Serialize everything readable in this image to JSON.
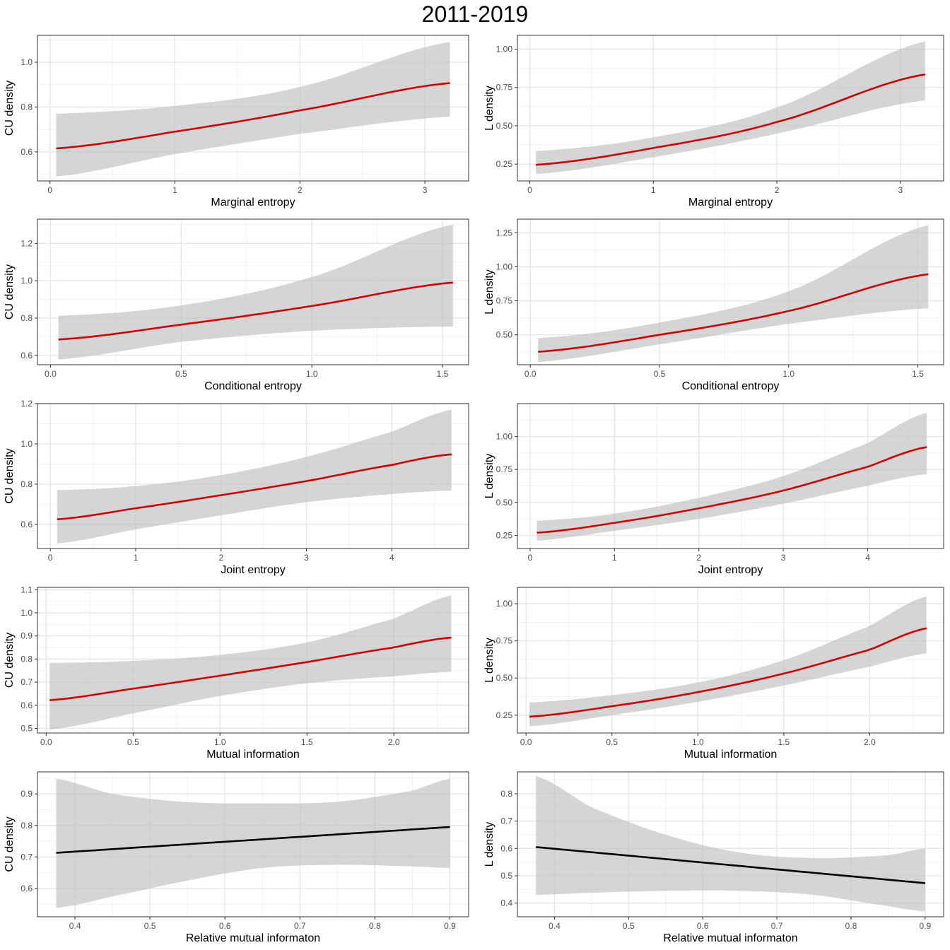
{
  "title": "2011-2019",
  "colors": {
    "significant_line": "#CC0000",
    "nonsignificant_line": "#000000",
    "ribbon": "#BEBEBE"
  },
  "chart_data": [
    {
      "type": "line",
      "xlabel": "Marginal entropy",
      "ylabel": "CU density",
      "xlim": [
        -0.1,
        3.35
      ],
      "ylim": [
        0.47,
        1.12
      ],
      "xticks": [
        0,
        1,
        2,
        3
      ],
      "yticks": [
        0.6,
        0.8,
        1.0
      ],
      "ytick_labels": [
        "0.6",
        "0.8",
        "1.0"
      ],
      "series": [
        {
          "name": "fit",
          "x": [
            0.05,
            1.0,
            2.0,
            3.2
          ],
          "y": [
            0.615,
            0.69,
            0.785,
            0.907
          ]
        }
      ],
      "band": {
        "x": [
          0.05,
          1.0,
          2.0,
          3.2
        ],
        "lower": [
          0.49,
          0.59,
          0.68,
          0.757
        ],
        "upper": [
          0.77,
          0.805,
          0.89,
          1.09
        ]
      },
      "color": "#CC0000"
    },
    {
      "type": "line",
      "xlabel": "Marginal entropy",
      "ylabel": "L density",
      "xlim": [
        -0.1,
        3.35
      ],
      "ylim": [
        0.14,
        1.09
      ],
      "xticks": [
        0,
        1,
        2,
        3
      ],
      "yticks": [
        0.25,
        0.5,
        0.75,
        1.0
      ],
      "ytick_labels": [
        "0.25",
        "0.50",
        "0.75",
        "1.00"
      ],
      "series": [
        {
          "name": "fit",
          "x": [
            0.05,
            1.0,
            2.0,
            3.2
          ],
          "y": [
            0.245,
            0.355,
            0.525,
            0.835
          ]
        }
      ],
      "band": {
        "x": [
          0.05,
          1.0,
          2.0,
          3.2
        ],
        "lower": [
          0.185,
          0.295,
          0.45,
          0.665
        ],
        "upper": [
          0.335,
          0.425,
          0.62,
          1.05
        ]
      },
      "color": "#CC0000"
    },
    {
      "type": "line",
      "xlabel": "Conditional entropy",
      "ylabel": "CU density",
      "xlim": [
        -0.05,
        1.6
      ],
      "ylim": [
        0.55,
        1.33
      ],
      "xticks": [
        0,
        0.5,
        1.0,
        1.5
      ],
      "xtick_labels": [
        "0.0",
        "0.5",
        "1.0",
        "1.5"
      ],
      "yticks": [
        0.6,
        0.8,
        1.0,
        1.2
      ],
      "ytick_labels": [
        "0.6",
        "0.8",
        "1.0",
        "1.2"
      ],
      "series": [
        {
          "name": "fit",
          "x": [
            0.03,
            0.5,
            1.0,
            1.54
          ],
          "y": [
            0.685,
            0.765,
            0.865,
            0.99
          ]
        }
      ],
      "band": {
        "x": [
          0.03,
          0.5,
          1.0,
          1.54
        ],
        "lower": [
          0.578,
          0.672,
          0.732,
          0.755
        ],
        "upper": [
          0.812,
          0.868,
          1.02,
          1.3
        ]
      },
      "color": "#CC0000"
    },
    {
      "type": "line",
      "xlabel": "Conditional entropy",
      "ylabel": "L density",
      "xlim": [
        -0.05,
        1.6
      ],
      "ylim": [
        0.28,
        1.35
      ],
      "xticks": [
        0,
        0.5,
        1.0,
        1.5
      ],
      "xtick_labels": [
        "0.0",
        "0.5",
        "1.0",
        "1.5"
      ],
      "yticks": [
        0.5,
        0.75,
        1.0,
        1.25
      ],
      "ytick_labels": [
        "0.50",
        "0.75",
        "1.00",
        "1.25"
      ],
      "series": [
        {
          "name": "fit",
          "x": [
            0.03,
            0.5,
            1.0,
            1.54
          ],
          "y": [
            0.375,
            0.5,
            0.675,
            0.945
          ]
        }
      ],
      "band": {
        "x": [
          0.03,
          0.5,
          1.0,
          1.54
        ],
        "lower": [
          0.3,
          0.43,
          0.58,
          0.695
        ],
        "upper": [
          0.475,
          0.59,
          0.82,
          1.305
        ]
      },
      "color": "#CC0000"
    },
    {
      "type": "line",
      "xlabel": "Joint entropy",
      "ylabel": "CU density",
      "xlim": [
        -0.15,
        4.9
      ],
      "ylim": [
        0.48,
        1.2
      ],
      "xticks": [
        0,
        1,
        2,
        3,
        4
      ],
      "yticks": [
        0.6,
        0.8,
        1.0,
        1.2
      ],
      "ytick_labels": [
        "0.6",
        "0.8",
        "1.0",
        "1.2"
      ],
      "series": [
        {
          "name": "fit",
          "x": [
            0.08,
            1.0,
            2.0,
            3.0,
            4.0,
            4.7
          ],
          "y": [
            0.625,
            0.68,
            0.745,
            0.815,
            0.895,
            0.948
          ]
        }
      ],
      "band": {
        "x": [
          0.08,
          1.0,
          2.0,
          3.0,
          4.0,
          4.7
        ],
        "lower": [
          0.505,
          0.575,
          0.645,
          0.71,
          0.75,
          0.768
        ],
        "upper": [
          0.77,
          0.79,
          0.845,
          0.935,
          1.06,
          1.17
        ]
      },
      "color": "#CC0000"
    },
    {
      "type": "line",
      "xlabel": "Joint entropy",
      "ylabel": "L density",
      "xlim": [
        -0.15,
        4.9
      ],
      "ylim": [
        0.15,
        1.25
      ],
      "xticks": [
        0,
        1,
        2,
        3,
        4
      ],
      "yticks": [
        0.25,
        0.5,
        0.75,
        1.0
      ],
      "ytick_labels": [
        "0.25",
        "0.50",
        "0.75",
        "1.00"
      ],
      "series": [
        {
          "name": "fit",
          "x": [
            0.08,
            1.0,
            2.0,
            3.0,
            4.0,
            4.7
          ],
          "y": [
            0.27,
            0.345,
            0.455,
            0.59,
            0.77,
            0.92
          ]
        }
      ],
      "band": {
        "x": [
          0.08,
          1.0,
          2.0,
          3.0,
          4.0,
          4.7
        ],
        "lower": [
          0.21,
          0.285,
          0.375,
          0.49,
          0.625,
          0.715
        ],
        "upper": [
          0.36,
          0.415,
          0.535,
          0.7,
          0.95,
          1.18
        ]
      },
      "color": "#CC0000"
    },
    {
      "type": "line",
      "xlabel": "Mutual information",
      "ylabel": "CU density",
      "xlim": [
        -0.05,
        2.43
      ],
      "ylim": [
        0.48,
        1.11
      ],
      "xticks": [
        0,
        0.5,
        1.0,
        1.5,
        2.0
      ],
      "xtick_labels": [
        "0.0",
        "0.5",
        "1.0",
        "1.5",
        "2.0"
      ],
      "yticks": [
        0.5,
        0.6,
        0.7,
        0.8,
        0.9,
        1.0,
        1.1
      ],
      "ytick_labels": [
        "0.5",
        "0.6",
        "0.7",
        "0.8",
        "0.9",
        "1.0",
        "1.1"
      ],
      "series": [
        {
          "name": "fit",
          "x": [
            0.02,
            0.5,
            1.0,
            1.5,
            2.0,
            2.33
          ],
          "y": [
            0.622,
            0.672,
            0.728,
            0.787,
            0.85,
            0.893
          ]
        }
      ],
      "band": {
        "x": [
          0.02,
          0.5,
          1.0,
          1.5,
          2.0,
          2.33
        ],
        "lower": [
          0.495,
          0.565,
          0.64,
          0.695,
          0.725,
          0.745
        ],
        "upper": [
          0.783,
          0.792,
          0.818,
          0.872,
          0.975,
          1.075
        ]
      },
      "color": "#CC0000"
    },
    {
      "type": "line",
      "xlabel": "Mutual information",
      "ylabel": "L density",
      "xlim": [
        -0.05,
        2.43
      ],
      "ylim": [
        0.13,
        1.11
      ],
      "xticks": [
        0,
        0.5,
        1.0,
        1.5,
        2.0
      ],
      "xtick_labels": [
        "0.0",
        "0.5",
        "1.0",
        "1.5",
        "2.0"
      ],
      "yticks": [
        0.25,
        0.5,
        0.75,
        1.0
      ],
      "ytick_labels": [
        "0.25",
        "0.50",
        "0.75",
        "1.00"
      ],
      "series": [
        {
          "name": "fit",
          "x": [
            0.02,
            0.5,
            1.0,
            1.5,
            2.0,
            2.33
          ],
          "y": [
            0.24,
            0.31,
            0.405,
            0.53,
            0.69,
            0.835
          ]
        }
      ],
      "band": {
        "x": [
          0.02,
          0.5,
          1.0,
          1.5,
          2.0,
          2.33
        ],
        "lower": [
          0.175,
          0.25,
          0.34,
          0.45,
          0.575,
          0.665
        ],
        "upper": [
          0.335,
          0.385,
          0.47,
          0.62,
          0.85,
          1.05
        ]
      },
      "color": "#CC0000"
    },
    {
      "type": "line",
      "xlabel": "Relative mutual informaton",
      "ylabel": "CU density",
      "xlim": [
        0.35,
        0.925
      ],
      "ylim": [
        0.51,
        0.97
      ],
      "xticks": [
        0.4,
        0.5,
        0.6,
        0.7,
        0.8,
        0.9
      ],
      "xtick_labels": [
        "0.4",
        "0.5",
        "0.6",
        "0.7",
        "0.8",
        "0.9"
      ],
      "yticks": [
        0.6,
        0.7,
        0.8,
        0.9
      ],
      "ytick_labels": [
        "0.6",
        "0.7",
        "0.8",
        "0.9"
      ],
      "series": [
        {
          "name": "fit",
          "x": [
            0.375,
            0.9
          ],
          "y": [
            0.713,
            0.795
          ]
        }
      ],
      "band": {
        "x": [
          0.375,
          0.45,
          0.55,
          0.65,
          0.75,
          0.85,
          0.9
        ],
        "lower": [
          0.538,
          0.575,
          0.625,
          0.665,
          0.675,
          0.67,
          0.665
        ],
        "upper": [
          0.948,
          0.9,
          0.874,
          0.87,
          0.875,
          0.91,
          0.948
        ]
      },
      "color": "#000000"
    },
    {
      "type": "line",
      "xlabel": "Relative mutual informaton",
      "ylabel": "L density",
      "xlim": [
        0.35,
        0.925
      ],
      "ylim": [
        0.35,
        0.88
      ],
      "xticks": [
        0.4,
        0.5,
        0.6,
        0.7,
        0.8,
        0.9
      ],
      "xtick_labels": [
        "0.4",
        "0.5",
        "0.6",
        "0.7",
        "0.8",
        "0.9"
      ],
      "yticks": [
        0.4,
        0.5,
        0.6,
        0.7,
        0.8
      ],
      "ytick_labels": [
        "0.4",
        "0.5",
        "0.6",
        "0.7",
        "0.8"
      ],
      "series": [
        {
          "name": "fit",
          "x": [
            0.375,
            0.9
          ],
          "y": [
            0.605,
            0.473
          ]
        }
      ],
      "band": {
        "x": [
          0.375,
          0.45,
          0.55,
          0.65,
          0.75,
          0.85,
          0.9
        ],
        "lower": [
          0.43,
          0.438,
          0.445,
          0.445,
          0.43,
          0.39,
          0.37
        ],
        "upper": [
          0.865,
          0.75,
          0.65,
          0.585,
          0.565,
          0.575,
          0.6
        ]
      },
      "color": "#000000"
    }
  ]
}
